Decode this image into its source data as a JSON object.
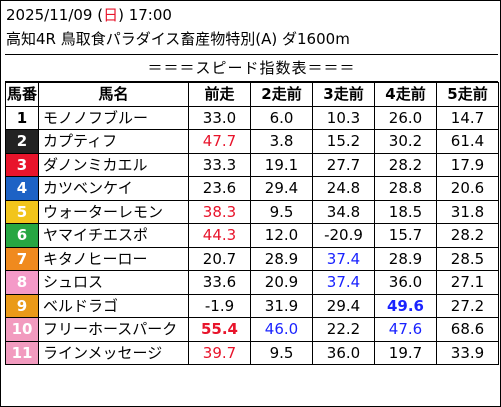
{
  "header": {
    "date_prefix": "2025/11/09 (",
    "weekday": "日",
    "date_suffix": ") 17:00",
    "race": "高知4R 鳥取食パラダイス畜産物特別(A) ダ1600m"
  },
  "banner": "＝＝＝スピード指数表＝＝＝",
  "columns": [
    "馬番",
    "馬名",
    "前走",
    "2走前",
    "3走前",
    "4走前",
    "5走前"
  ],
  "colors": {
    "red": "#e8142b",
    "blue": "#1a23ff",
    "gate": [
      "#ffffff",
      "#222222",
      "#e8142b",
      "#1d62c5",
      "#f2c51b",
      "#26a642",
      "#f08a1e",
      "#f49ac8",
      "#ea9a19",
      "#f29bbf",
      "#f29bbf"
    ]
  },
  "rows": [
    {
      "num": "1",
      "name": "モノノフブルー",
      "vals": [
        {
          "v": "33.0"
        },
        {
          "v": "6.0"
        },
        {
          "v": "10.3"
        },
        {
          "v": "26.0"
        },
        {
          "v": "14.7"
        }
      ]
    },
    {
      "num": "2",
      "name": "カプティフ",
      "vals": [
        {
          "v": "47.7",
          "c": "red"
        },
        {
          "v": "3.8"
        },
        {
          "v": "15.2"
        },
        {
          "v": "30.2"
        },
        {
          "v": "61.4"
        }
      ]
    },
    {
      "num": "3",
      "name": "ダノンミカエル",
      "vals": [
        {
          "v": "33.3"
        },
        {
          "v": "19.1"
        },
        {
          "v": "27.7"
        },
        {
          "v": "28.2"
        },
        {
          "v": "17.9"
        }
      ]
    },
    {
      "num": "4",
      "name": "カツベンケイ",
      "vals": [
        {
          "v": "23.6"
        },
        {
          "v": "29.4"
        },
        {
          "v": "24.8"
        },
        {
          "v": "28.8"
        },
        {
          "v": "20.6"
        }
      ]
    },
    {
      "num": "5",
      "name": "ウォーターレモン",
      "vals": [
        {
          "v": "38.3",
          "c": "red"
        },
        {
          "v": "9.5"
        },
        {
          "v": "34.8"
        },
        {
          "v": "18.5"
        },
        {
          "v": "31.8"
        }
      ]
    },
    {
      "num": "6",
      "name": "ヤマイチエスポ",
      "vals": [
        {
          "v": "44.3",
          "c": "red"
        },
        {
          "v": "12.0"
        },
        {
          "v": "-20.9"
        },
        {
          "v": "15.7"
        },
        {
          "v": "28.2"
        }
      ]
    },
    {
      "num": "7",
      "name": "キタノヒーロー",
      "vals": [
        {
          "v": "20.7"
        },
        {
          "v": "28.9"
        },
        {
          "v": "37.4",
          "c": "blue"
        },
        {
          "v": "28.9"
        },
        {
          "v": "28.5"
        }
      ]
    },
    {
      "num": "8",
      "name": "シュロス",
      "vals": [
        {
          "v": "33.6"
        },
        {
          "v": "20.9"
        },
        {
          "v": "37.4",
          "c": "blue"
        },
        {
          "v": "36.0"
        },
        {
          "v": "27.1"
        }
      ]
    },
    {
      "num": "9",
      "name": "ベルドラゴ",
      "vals": [
        {
          "v": "-1.9"
        },
        {
          "v": "31.9"
        },
        {
          "v": "29.4"
        },
        {
          "v": "49.6",
          "c": "blue",
          "b": true
        },
        {
          "v": "27.2"
        }
      ]
    },
    {
      "num": "10",
      "name": "フリーホースパーク",
      "vals": [
        {
          "v": "55.4",
          "c": "red",
          "b": true
        },
        {
          "v": "46.0",
          "c": "blue"
        },
        {
          "v": "22.2"
        },
        {
          "v": "47.6",
          "c": "blue"
        },
        {
          "v": "68.6"
        }
      ]
    },
    {
      "num": "11",
      "name": "ラインメッセージ",
      "vals": [
        {
          "v": "39.7",
          "c": "red"
        },
        {
          "v": "9.5"
        },
        {
          "v": "36.0"
        },
        {
          "v": "19.7"
        },
        {
          "v": "33.9"
        }
      ]
    }
  ]
}
